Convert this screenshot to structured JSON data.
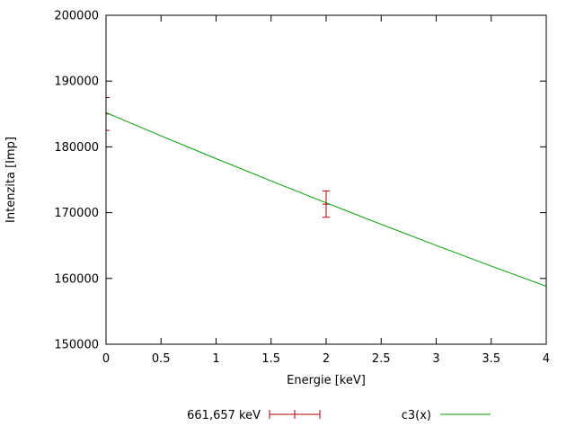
{
  "chart_data": {
    "type": "line",
    "title": "",
    "xlabel": "Energie [keV]",
    "ylabel": "Intenzita [Imp]",
    "xlim": [
      0,
      4
    ],
    "ylim": [
      150000,
      200000
    ],
    "x_ticks": [
      0,
      0.5,
      1,
      1.5,
      2,
      2.5,
      3,
      3.5,
      4
    ],
    "y_ticks": [
      150000,
      160000,
      170000,
      180000,
      190000,
      200000
    ],
    "grid": false,
    "legend_position": "bottom-center",
    "axis_color": "#000000",
    "text_color": "#000000",
    "background": "#ffffff",
    "series": [
      {
        "name": "661,657 keV",
        "type": "errorbars",
        "color": "#b00000",
        "points": [
          {
            "x": 0,
            "y": 185000,
            "yerr": 2500
          },
          {
            "x": 2,
            "y": 171300,
            "yerr": 2000
          }
        ]
      },
      {
        "name": "c3(x)",
        "type": "line",
        "color": "#00a000",
        "x": [
          0,
          0.5,
          1,
          1.5,
          2,
          2.5,
          3,
          3.5,
          4
        ],
        "y": [
          185200,
          181670,
          178210,
          174820,
          171490,
          168230,
          165020,
          161880,
          158800
        ]
      }
    ]
  }
}
